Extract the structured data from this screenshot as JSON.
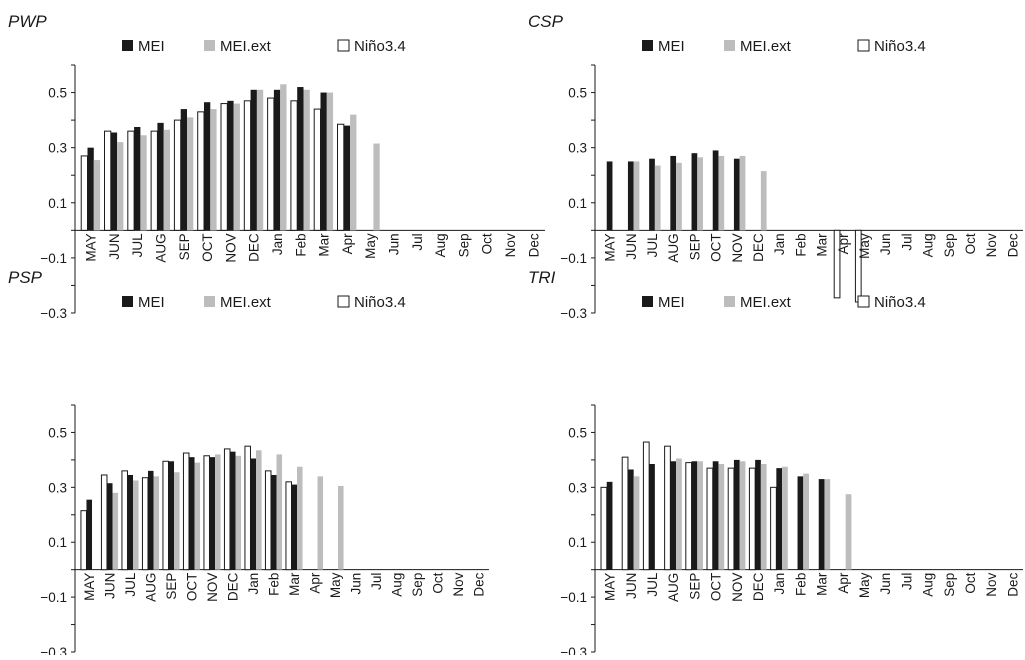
{
  "colors": {
    "mei": "#1a1a1a",
    "mei_ext": "#bdbdbd",
    "nino34": "#ffffff",
    "outline": "#1a1a1a"
  },
  "legend": {
    "mei": "MEI",
    "mei_ext": "MEI.ext",
    "nino34": "Niño3.4"
  },
  "chart_data": [
    {
      "type": "bar",
      "title": "PWP",
      "ylim": [
        -0.3,
        0.6
      ],
      "yticks": [
        0.5,
        0.3,
        0.1,
        -0.1,
        -0.3
      ],
      "ytick_labels": [
        "0.5",
        "0.3",
        "0.1",
        "−0.1",
        "−0.3"
      ],
      "categories": [
        "MAY",
        "JUN",
        "JUL",
        "AUG",
        "SEP",
        "OCT",
        "NOV",
        "DEC",
        "Jan",
        "Feb",
        "Mar",
        "Apr",
        "May",
        "Jun",
        "Jul",
        "Aug",
        "Sep",
        "Oct",
        "Nov",
        "Dec"
      ],
      "series": [
        {
          "name": "Niño3.4",
          "values": [
            0.27,
            0.36,
            0.36,
            0.36,
            0.4,
            0.43,
            0.46,
            0.47,
            0.48,
            0.47,
            0.44,
            0.385,
            null,
            null,
            null,
            null,
            null,
            null,
            null,
            null
          ]
        },
        {
          "name": "MEI",
          "values": [
            0.3,
            0.355,
            0.375,
            0.39,
            0.44,
            0.465,
            0.47,
            0.51,
            0.51,
            0.52,
            0.5,
            0.38,
            null,
            null,
            null,
            null,
            null,
            null,
            null,
            null
          ]
        },
        {
          "name": "MEI.ext",
          "values": [
            0.255,
            0.32,
            0.345,
            0.365,
            0.41,
            0.44,
            0.46,
            0.51,
            0.53,
            0.51,
            0.5,
            0.42,
            0.315,
            null,
            null,
            null,
            null,
            null,
            null,
            null
          ]
        }
      ]
    },
    {
      "type": "bar",
      "title": "CSP",
      "ylim": [
        -0.3,
        0.6
      ],
      "yticks": [
        0.5,
        0.3,
        0.1,
        -0.1,
        -0.3
      ],
      "ytick_labels": [
        "0.5",
        "0.3",
        "0.1",
        "−0.1",
        "−0.3"
      ],
      "categories": [
        "MAY",
        "JUN",
        "JUL",
        "AUG",
        "SEP",
        "OCT",
        "NOV",
        "DEC",
        "Jan",
        "Feb",
        "Mar",
        "Apr",
        "May",
        "Jun",
        "Jul",
        "Aug",
        "Sep",
        "Oct",
        "Nov",
        "Dec"
      ],
      "series": [
        {
          "name": "Niño3.4",
          "values": [
            null,
            null,
            null,
            null,
            null,
            null,
            null,
            null,
            null,
            null,
            null,
            -0.245,
            -0.26,
            null,
            null,
            null,
            null,
            null,
            null,
            null
          ]
        },
        {
          "name": "MEI",
          "values": [
            0.25,
            0.25,
            0.26,
            0.27,
            0.28,
            0.29,
            0.26,
            null,
            null,
            null,
            null,
            null,
            null,
            null,
            null,
            null,
            null,
            null,
            null,
            null
          ]
        },
        {
          "name": "MEI.ext",
          "values": [
            null,
            0.25,
            0.235,
            0.245,
            0.265,
            0.27,
            0.27,
            0.215,
            null,
            null,
            null,
            null,
            null,
            null,
            null,
            null,
            null,
            null,
            null,
            null
          ]
        }
      ]
    },
    {
      "type": "bar",
      "title": "PSP",
      "ylim": [
        -0.3,
        0.6
      ],
      "yticks": [
        0.5,
        0.3,
        0.1,
        -0.1,
        -0.3
      ],
      "ytick_labels": [
        "0.5",
        "0.3",
        "0.1",
        "−0.1",
        "−0.3"
      ],
      "categories": [
        "MAY",
        "JUN",
        "JUL",
        "AUG",
        "SEP",
        "OCT",
        "NOV",
        "DEC",
        "Jan",
        "Feb",
        "Mar",
        "Apr",
        "May",
        "Jun",
        "Jul",
        "Aug",
        "Sep",
        "Oct",
        "Nov",
        "Dec"
      ],
      "series": [
        {
          "name": "Niño3.4",
          "values": [
            0.215,
            0.345,
            0.36,
            0.335,
            0.395,
            0.425,
            0.415,
            0.44,
            0.45,
            0.36,
            0.32,
            null,
            null,
            null,
            null,
            null,
            null,
            null,
            null,
            null
          ]
        },
        {
          "name": "MEI",
          "values": [
            0.255,
            0.315,
            0.345,
            0.36,
            0.395,
            0.41,
            0.41,
            0.43,
            0.405,
            0.345,
            0.31,
            null,
            null,
            null,
            null,
            null,
            null,
            null,
            null,
            null
          ]
        },
        {
          "name": "MEI.ext",
          "values": [
            null,
            0.28,
            0.325,
            0.34,
            0.355,
            0.39,
            0.42,
            0.415,
            0.435,
            0.42,
            0.375,
            0.34,
            0.305,
            null,
            null,
            null,
            null,
            null,
            null,
            null
          ]
        }
      ]
    },
    {
      "type": "bar",
      "title": "TRI",
      "ylim": [
        -0.3,
        0.6
      ],
      "yticks": [
        0.5,
        0.3,
        0.1,
        -0.1,
        -0.3
      ],
      "ytick_labels": [
        "0.5",
        "0.3",
        "0.1",
        "−0.1",
        "−0.3"
      ],
      "categories": [
        "MAY",
        "JUN",
        "JUL",
        "AUG",
        "SEP",
        "OCT",
        "NOV",
        "DEC",
        "Jan",
        "Feb",
        "Mar",
        "Apr",
        "May",
        "Jun",
        "Jul",
        "Aug",
        "Sep",
        "Oct",
        "Nov",
        "Dec"
      ],
      "series": [
        {
          "name": "Niño3.4",
          "values": [
            0.3,
            0.41,
            0.465,
            0.45,
            0.39,
            0.37,
            0.37,
            0.37,
            0.3,
            null,
            null,
            null,
            null,
            null,
            null,
            null,
            null,
            null,
            null,
            null
          ]
        },
        {
          "name": "MEI",
          "values": [
            0.32,
            0.365,
            0.385,
            0.395,
            0.395,
            0.395,
            0.4,
            0.4,
            0.37,
            0.34,
            0.33,
            null,
            null,
            null,
            null,
            null,
            null,
            null,
            null,
            null
          ]
        },
        {
          "name": "MEI.ext",
          "values": [
            null,
            0.34,
            null,
            0.405,
            0.395,
            0.385,
            0.395,
            0.385,
            0.375,
            0.35,
            0.33,
            0.275,
            null,
            null,
            null,
            null,
            null,
            null,
            null,
            null
          ]
        }
      ]
    }
  ]
}
